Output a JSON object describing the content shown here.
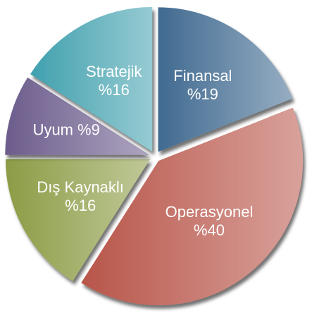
{
  "chart_data": {
    "type": "pie",
    "categories": [
      "Finansal",
      "Operasyonel",
      "Dış Kaynaklı",
      "Uyum",
      "Stratejik"
    ],
    "values": [
      19,
      40,
      16,
      9,
      16
    ],
    "value_labels": [
      "%19",
      "%40",
      "%16",
      "%9",
      "%16"
    ],
    "colors": [
      "#3f6b90",
      "#b8544a",
      "#8c9c44",
      "#6c5b8c",
      "#3fa0ae"
    ]
  }
}
